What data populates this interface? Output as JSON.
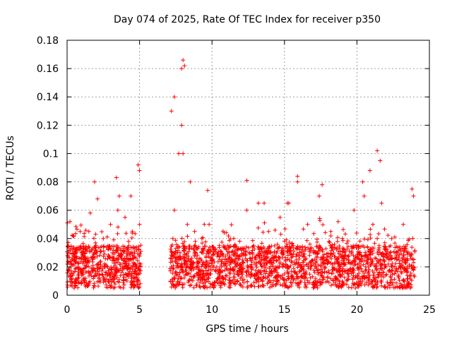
{
  "chart_data": {
    "type": "scatter",
    "title": "Day 074 of 2025, Rate Of TEC Index for receiver p350",
    "xlabel": "GPS time / hours",
    "ylabel": "ROTI / TECUs",
    "xlim": [
      0,
      25
    ],
    "ylim": [
      0,
      0.18
    ],
    "x_ticks": [
      0,
      5,
      10,
      15,
      20,
      25
    ],
    "x_tick_labels": [
      "0",
      "5",
      "10",
      "15",
      "20",
      "25"
    ],
    "y_ticks": [
      0,
      0.02,
      0.04,
      0.06,
      0.08,
      0.1,
      0.12,
      0.14,
      0.16,
      0.18
    ],
    "y_tick_labels": [
      "0",
      "0.02",
      "0.04",
      "0.06",
      "0.08",
      "0.1",
      "0.12",
      "0.14",
      "0.16",
      "0.18"
    ],
    "grid": true,
    "marker": "+",
    "color": "#ff0000",
    "data_gap_hours": [
      5.1,
      7.1
    ],
    "series": [
      {
        "name": "ROTI",
        "x": [
          0.1,
          0.3,
          0.5,
          0.8,
          1.0,
          1.3,
          1.5,
          1.8,
          2.0,
          2.2,
          2.5,
          2.8,
          3.0,
          3.3,
          3.5,
          3.8,
          4.0,
          4.3,
          4.5,
          4.8,
          5.0,
          0.2,
          0.9,
          1.6,
          1.9,
          2.1,
          3.4,
          3.6,
          4.4,
          4.9,
          5.0,
          7.2,
          7.3,
          7.4,
          7.5,
          7.8,
          7.9,
          8.0,
          8.1,
          8.3,
          8.5,
          8.8,
          9.0,
          9.3,
          9.5,
          9.8,
          10.0,
          10.5,
          11.0,
          11.5,
          12.0,
          12.4,
          12.8,
          13.2,
          13.5,
          13.9,
          14.3,
          14.7,
          15.0,
          15.3,
          15.6,
          15.9,
          16.2,
          16.6,
          17.0,
          17.4,
          17.8,
          18.2,
          18.6,
          19.0,
          19.4,
          19.8,
          20.2,
          20.5,
          20.8,
          21.1,
          21.4,
          21.7,
          22.0,
          22.4,
          22.8,
          23.2,
          23.6,
          23.9,
          7.2,
          7.4,
          7.9,
          8.0,
          8.1,
          7.7,
          8.5,
          9.7,
          12.4,
          13.6,
          15.2,
          15.9,
          17.6,
          20.4,
          20.9,
          21.4,
          21.6,
          23.8
        ],
        "y": [
          0.018,
          0.012,
          0.025,
          0.015,
          0.03,
          0.02,
          0.045,
          0.018,
          0.035,
          0.015,
          0.04,
          0.02,
          0.05,
          0.015,
          0.06,
          0.02,
          0.055,
          0.015,
          0.045,
          0.02,
          0.05,
          0.052,
          0.045,
          0.058,
          0.08,
          0.068,
          0.083,
          0.07,
          0.07,
          0.092,
          0.088,
          0.02,
          0.04,
          0.06,
          0.015,
          0.03,
          0.12,
          0.1,
          0.025,
          0.05,
          0.02,
          0.045,
          0.015,
          0.04,
          0.02,
          0.05,
          0.018,
          0.035,
          0.025,
          0.04,
          0.02,
          0.06,
          0.03,
          0.065,
          0.02,
          0.045,
          0.03,
          0.055,
          0.015,
          0.065,
          0.035,
          0.08,
          0.02,
          0.05,
          0.03,
          0.07,
          0.02,
          0.045,
          0.025,
          0.04,
          0.015,
          0.06,
          0.03,
          0.07,
          0.02,
          0.05,
          0.04,
          0.065,
          0.02,
          0.04,
          0.03,
          0.05,
          0.02,
          0.07,
          0.13,
          0.14,
          0.16,
          0.166,
          0.162,
          0.1,
          0.08,
          0.074,
          0.081,
          0.065,
          0.065,
          0.084,
          0.078,
          0.08,
          0.088,
          0.102,
          0.095,
          0.075
        ]
      }
    ]
  }
}
